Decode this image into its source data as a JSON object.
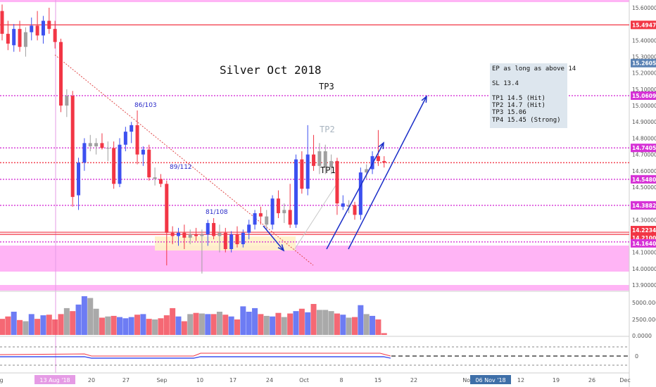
{
  "chart_data": {
    "type": "candlestick",
    "title": "Silver Oct 2018",
    "y_axis": {
      "min": 13.85,
      "max": 15.65,
      "ticks": [
        "15.60000",
        "15.50000",
        "15.40000",
        "15.30000",
        "15.20000",
        "15.10000",
        "15.00000",
        "14.90000",
        "14.80000",
        "14.70000",
        "14.60000",
        "14.50000",
        "14.40000",
        "14.30000",
        "14.20000",
        "14.10000",
        "14.00000",
        "13.90000"
      ]
    },
    "x_axis": {
      "ticks": [
        "g",
        "13 Aug '18",
        "20",
        "27",
        "Sep",
        "10",
        "17",
        "24",
        "Oct",
        "8",
        "15",
        "22",
        "Nov",
        "06 Nov '18",
        "12",
        "19",
        "26",
        "Dec"
      ]
    },
    "price_labels": [
      {
        "value": "15.49474",
        "price": 15.49474,
        "color": "#f23645"
      },
      {
        "value": "15.26051",
        "price": 15.26051,
        "color": "#5a82b4"
      },
      {
        "value": "15.06090",
        "price": 15.0609,
        "color": "#d632d6"
      },
      {
        "value": "14.74054",
        "price": 14.74054,
        "color": "#d632d6"
      },
      {
        "value": "14.54805",
        "price": 14.54805,
        "color": "#d632d6"
      },
      {
        "value": "14.38820",
        "price": 14.3882,
        "color": "#d632d6"
      },
      {
        "value": "14.22341",
        "price": 14.22341,
        "color": "#f23645"
      },
      {
        "value": "14.21005",
        "price": 14.21005,
        "color": "#f23645"
      },
      {
        "value": "14.16401",
        "price": 14.16401,
        "color": "#d632d6"
      }
    ],
    "horizontal_lines": [
      {
        "price": 15.49474,
        "color": "#f23645",
        "style": "solid"
      },
      {
        "price": 15.0609,
        "color": "#d632d6",
        "style": "dotted"
      },
      {
        "price": 14.74054,
        "color": "#d632d6",
        "style": "dotted"
      },
      {
        "price": 14.65,
        "color": "#f23645",
        "style": "dotted"
      },
      {
        "price": 14.54805,
        "color": "#d632d6",
        "style": "dotted"
      },
      {
        "price": 14.3882,
        "color": "#d632d6",
        "style": "dotted"
      },
      {
        "price": 14.22341,
        "color": "#f23645",
        "style": "solid"
      },
      {
        "price": 14.21005,
        "color": "#f23645",
        "style": "solid"
      },
      {
        "price": 14.16401,
        "color": "#d632d6",
        "style": "dotted"
      }
    ],
    "candles": [
      {
        "o": 15.58,
        "h": 15.62,
        "l": 15.4,
        "c": 15.44,
        "col": "red"
      },
      {
        "o": 15.44,
        "h": 15.52,
        "l": 15.34,
        "c": 15.38,
        "col": "red"
      },
      {
        "o": 15.37,
        "h": 15.5,
        "l": 15.33,
        "c": 15.47,
        "col": "blue"
      },
      {
        "o": 15.47,
        "h": 15.52,
        "l": 15.33,
        "c": 15.36,
        "col": "red"
      },
      {
        "o": 15.36,
        "h": 15.48,
        "l": 15.3,
        "c": 15.45,
        "col": "gray"
      },
      {
        "o": 15.45,
        "h": 15.54,
        "l": 15.4,
        "c": 15.49,
        "col": "blue"
      },
      {
        "o": 15.49,
        "h": 15.58,
        "l": 15.4,
        "c": 15.43,
        "col": "red"
      },
      {
        "o": 15.43,
        "h": 15.55,
        "l": 15.38,
        "c": 15.52,
        "col": "blue"
      },
      {
        "o": 15.52,
        "h": 15.6,
        "l": 15.44,
        "c": 15.47,
        "col": "red"
      },
      {
        "o": 15.47,
        "h": 15.52,
        "l": 15.35,
        "c": 15.39,
        "col": "red"
      },
      {
        "o": 15.39,
        "h": 15.41,
        "l": 14.96,
        "c": 15.0,
        "col": "red"
      },
      {
        "o": 15.0,
        "h": 15.1,
        "l": 14.93,
        "c": 15.06,
        "col": "gray"
      },
      {
        "o": 15.06,
        "h": 15.09,
        "l": 14.38,
        "c": 14.44,
        "col": "red"
      },
      {
        "o": 14.45,
        "h": 14.68,
        "l": 14.36,
        "c": 14.65,
        "col": "blue"
      },
      {
        "o": 14.65,
        "h": 14.8,
        "l": 14.6,
        "c": 14.77,
        "col": "blue"
      },
      {
        "o": 14.77,
        "h": 14.82,
        "l": 14.72,
        "c": 14.75,
        "col": "gray"
      },
      {
        "o": 14.75,
        "h": 14.8,
        "l": 14.7,
        "c": 14.77,
        "col": "gray"
      },
      {
        "o": 14.77,
        "h": 14.83,
        "l": 14.73,
        "c": 14.74,
        "col": "red"
      },
      {
        "o": 14.74,
        "h": 14.78,
        "l": 14.66,
        "c": 14.74,
        "col": "gray"
      },
      {
        "o": 14.74,
        "h": 14.78,
        "l": 14.49,
        "c": 14.52,
        "col": "red"
      },
      {
        "o": 14.52,
        "h": 14.8,
        "l": 14.5,
        "c": 14.76,
        "col": "blue"
      },
      {
        "o": 14.76,
        "h": 14.87,
        "l": 14.72,
        "c": 14.84,
        "col": "blue"
      },
      {
        "o": 14.84,
        "h": 14.9,
        "l": 14.77,
        "c": 14.88,
        "col": "blue"
      },
      {
        "o": 14.88,
        "h": 14.97,
        "l": 14.64,
        "c": 14.7,
        "col": "red"
      },
      {
        "o": 14.7,
        "h": 14.75,
        "l": 14.63,
        "c": 14.73,
        "col": "blue"
      },
      {
        "o": 14.73,
        "h": 14.76,
        "l": 14.54,
        "c": 14.56,
        "col": "red"
      },
      {
        "o": 14.56,
        "h": 14.62,
        "l": 14.51,
        "c": 14.55,
        "col": "gray"
      },
      {
        "o": 14.55,
        "h": 14.58,
        "l": 14.5,
        "c": 14.52,
        "col": "red"
      },
      {
        "o": 14.52,
        "h": 14.54,
        "l": 14.02,
        "c": 14.22,
        "col": "red"
      },
      {
        "o": 14.22,
        "h": 14.26,
        "l": 14.15,
        "c": 14.2,
        "col": "red"
      },
      {
        "o": 14.2,
        "h": 14.25,
        "l": 14.14,
        "c": 14.22,
        "col": "blue"
      },
      {
        "o": 14.22,
        "h": 14.27,
        "l": 14.12,
        "c": 14.19,
        "col": "red"
      },
      {
        "o": 14.19,
        "h": 14.24,
        "l": 14.15,
        "c": 14.21,
        "col": "gray"
      },
      {
        "o": 14.21,
        "h": 14.25,
        "l": 14.17,
        "c": 14.2,
        "col": "red"
      },
      {
        "o": 14.2,
        "h": 14.24,
        "l": 13.97,
        "c": 14.21,
        "col": "gray"
      },
      {
        "o": 14.21,
        "h": 14.3,
        "l": 14.14,
        "c": 14.28,
        "col": "blue"
      },
      {
        "o": 14.28,
        "h": 14.31,
        "l": 14.18,
        "c": 14.2,
        "col": "red"
      },
      {
        "o": 14.2,
        "h": 14.27,
        "l": 14.1,
        "c": 14.22,
        "col": "gray"
      },
      {
        "o": 14.22,
        "h": 14.25,
        "l": 14.1,
        "c": 14.12,
        "col": "red"
      },
      {
        "o": 14.12,
        "h": 14.23,
        "l": 14.1,
        "c": 14.21,
        "col": "blue"
      },
      {
        "o": 14.21,
        "h": 14.26,
        "l": 14.13,
        "c": 14.15,
        "col": "red"
      },
      {
        "o": 14.15,
        "h": 14.24,
        "l": 14.13,
        "c": 14.22,
        "col": "blue"
      },
      {
        "o": 14.22,
        "h": 14.3,
        "l": 14.18,
        "c": 14.27,
        "col": "blue"
      },
      {
        "o": 14.27,
        "h": 14.36,
        "l": 14.24,
        "c": 14.34,
        "col": "blue"
      },
      {
        "o": 14.34,
        "h": 14.38,
        "l": 14.27,
        "c": 14.32,
        "col": "red"
      },
      {
        "o": 14.32,
        "h": 14.36,
        "l": 14.24,
        "c": 14.27,
        "col": "gray"
      },
      {
        "o": 14.27,
        "h": 14.45,
        "l": 14.24,
        "c": 14.43,
        "col": "blue"
      },
      {
        "o": 14.43,
        "h": 14.48,
        "l": 14.31,
        "c": 14.34,
        "col": "red"
      },
      {
        "o": 14.34,
        "h": 14.4,
        "l": 14.28,
        "c": 14.36,
        "col": "gray"
      },
      {
        "o": 14.36,
        "h": 14.52,
        "l": 14.25,
        "c": 14.27,
        "col": "red"
      },
      {
        "o": 14.27,
        "h": 14.7,
        "l": 14.25,
        "c": 14.67,
        "col": "blue"
      },
      {
        "o": 14.67,
        "h": 14.72,
        "l": 14.46,
        "c": 14.49,
        "col": "red"
      },
      {
        "o": 14.49,
        "h": 14.88,
        "l": 14.45,
        "c": 14.7,
        "col": "blue"
      },
      {
        "o": 14.7,
        "h": 14.82,
        "l": 14.6,
        "c": 14.63,
        "col": "red"
      },
      {
        "o": 14.63,
        "h": 14.77,
        "l": 14.58,
        "c": 14.72,
        "col": "gray"
      },
      {
        "o": 14.72,
        "h": 14.76,
        "l": 14.58,
        "c": 14.62,
        "col": "gray"
      },
      {
        "o": 14.62,
        "h": 14.7,
        "l": 14.58,
        "c": 14.66,
        "col": "gray"
      },
      {
        "o": 14.66,
        "h": 14.68,
        "l": 14.33,
        "c": 14.4,
        "col": "red"
      },
      {
        "o": 14.4,
        "h": 14.45,
        "l": 14.36,
        "c": 14.38,
        "col": "blue"
      },
      {
        "o": 14.38,
        "h": 14.42,
        "l": 14.34,
        "c": 14.39,
        "col": "gray"
      },
      {
        "o": 14.39,
        "h": 14.41,
        "l": 14.3,
        "c": 14.33,
        "col": "red"
      },
      {
        "o": 14.33,
        "h": 14.62,
        "l": 14.3,
        "c": 14.59,
        "col": "blue"
      },
      {
        "o": 14.59,
        "h": 14.64,
        "l": 14.55,
        "c": 14.61,
        "col": "gray"
      },
      {
        "o": 14.61,
        "h": 14.72,
        "l": 14.58,
        "c": 14.69,
        "col": "blue"
      },
      {
        "o": 14.69,
        "h": 14.85,
        "l": 14.63,
        "c": 14.66,
        "col": "red"
      },
      {
        "o": 14.66,
        "h": 14.69,
        "l": 14.62,
        "c": 14.65,
        "col": "red"
      }
    ],
    "volume_axis": {
      "ticks": [
        "5000.0000",
        "2500.0000",
        "0.0000"
      ]
    },
    "volume": [
      2700,
      3100,
      3900,
      2500,
      2300,
      3500,
      2700,
      3300,
      3400,
      2600,
      3500,
      4500,
      4000,
      5100,
      6500,
      6200,
      4400,
      2900,
      3100,
      3200,
      3000,
      2800,
      3000,
      3400,
      3500,
      2700,
      2600,
      2800,
      3300,
      4500,
      3100,
      2300,
      3500,
      3700,
      3600,
      3500,
      3500,
      3900,
      3400,
      3100,
      2600,
      4800,
      3900,
      4500,
      3500,
      3200,
      3100,
      3700,
      3000,
      3600,
      4000,
      4400,
      3800,
      5200,
      4200,
      4200,
      4000,
      3600,
      3400,
      2900,
      3000,
      5000,
      3500,
      3200,
      2600,
      300
    ],
    "oscillator_axis": {
      "ticks": [
        "0"
      ]
    },
    "annotations": {
      "tp3": "TP3",
      "tp2": "TP2",
      "tp1": "TP1",
      "fib_86": "86/103",
      "fib_89": "89/112",
      "fib_81": "81/108"
    },
    "note": {
      "line1": "EP as long as above 14",
      "line2": "SL 13.4",
      "line3": "TP1 14.5 (Hit)",
      "line4": "TP2 14.7 (Hit)",
      "line5": "TP3 15.06",
      "line6": "TP4 15.45 (Strong)"
    },
    "colors": {
      "up": "#3c50f0",
      "down": "#f23645",
      "neutral": "#a0a0a0",
      "zone": "#ffb4f5",
      "arrow": "#1a2ec8"
    }
  }
}
